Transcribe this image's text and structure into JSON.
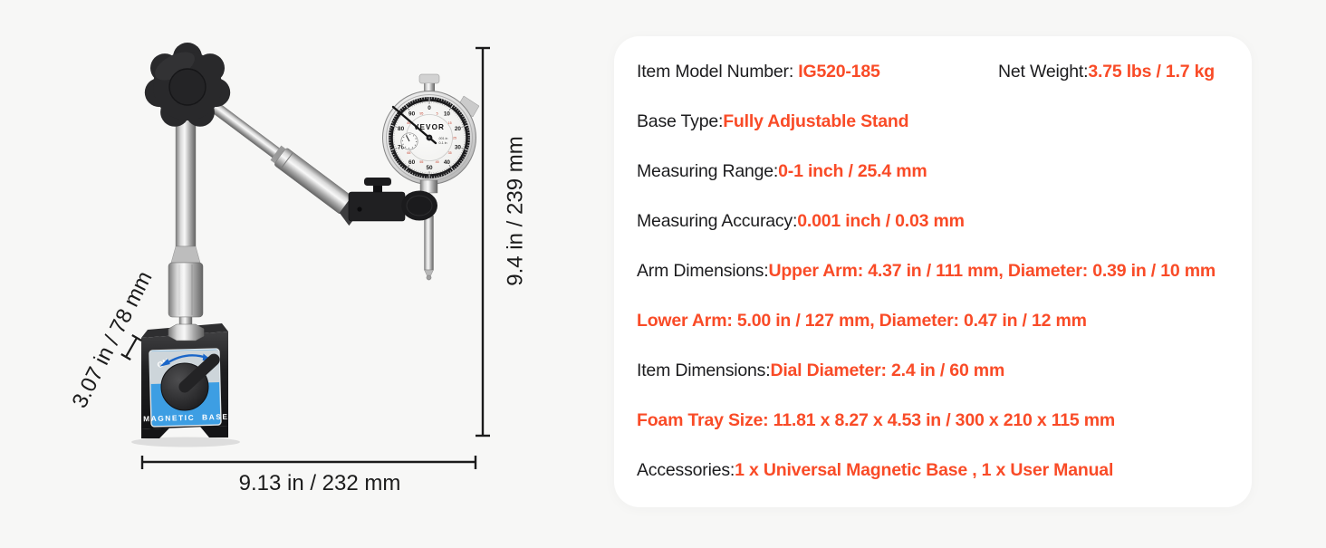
{
  "page": {
    "background_color": "#F7F7F6",
    "card_color": "#FFFFFF",
    "accent_color": "#F94B27",
    "text_color": "#1C1C1E"
  },
  "figure": {
    "brand": "VEVOR",
    "dial_small_text_top": ".001 in",
    "dial_small_text_bottom": "0-1 in",
    "dial_numbers": [
      "0",
      "10",
      "20",
      "30",
      "40",
      "50",
      "60",
      "70",
      "80",
      "90"
    ],
    "dial_numbers_red": [
      "5",
      "15",
      "25",
      "35",
      "45",
      "55",
      "65",
      "75",
      "85",
      "95"
    ],
    "base_panel_label": "MAGNETIC BASE",
    "switch_label": "ON",
    "panel_blue": "#3D9EE3",
    "dimension_height": "9.4 in / 239 mm",
    "dimension_width": "9.13 in / 232 mm",
    "dimension_depth": "3.07 in / 78 mm"
  },
  "spec_card": {
    "rows": [
      {
        "label": "Item Model Number: ",
        "value": "IG520-185"
      },
      {
        "label": "Base Type: ",
        "value": "Fully Adjustable Stand"
      },
      {
        "label": "Measuring Range: ",
        "value": "0-1 inch / 25.4 mm"
      },
      {
        "label": "Measuring Accuracy: ",
        "value": "0.001 inch / 0.03 mm"
      },
      {
        "label": "Arm Dimensions: ",
        "value": "Upper Arm: 4.37 in / 111 mm, Diameter: 0.39 in / 10 mm"
      },
      {
        "label": "",
        "value": "Lower Arm: 5.00 in / 127 mm, Diameter: 0.47 in / 12 mm"
      },
      {
        "label": "Item Dimensions: ",
        "value": "Dial Diameter: 2.4 in / 60 mm"
      },
      {
        "label": "",
        "value": "Foam Tray Size: 11.81 x 8.27 x 4.53 in / 300 x 210 x 115 mm"
      },
      {
        "label": "Accessories:",
        "value": "1 x Universal Magnetic Base , 1 x User Manual"
      }
    ],
    "row1_right": {
      "label": "Net Weight:",
      "value": "3.75 lbs / 1.7 kg"
    }
  }
}
